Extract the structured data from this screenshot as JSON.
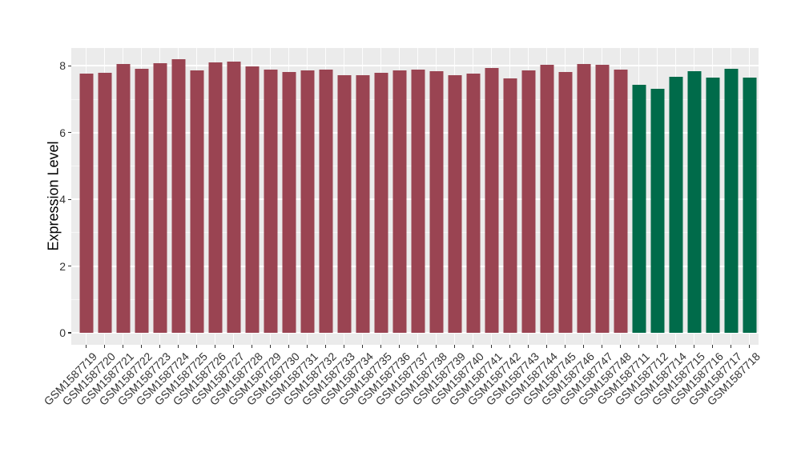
{
  "window": {
    "background": "#FFFFFF"
  },
  "chart_data": {
    "type": "bar",
    "title": "",
    "xlabel": "",
    "ylabel": "Expression Level",
    "ylim": [
      0,
      8.6
    ],
    "yticks": [
      0,
      2,
      4,
      6,
      8
    ],
    "yticks_minor": [
      1,
      3,
      5,
      7
    ],
    "grid": "on",
    "legend_position": "none",
    "panel_background": "#EBEBEB",
    "gridline_color": "#FFFFFF",
    "axis_text_color": "#333333",
    "axis_title_color": "#000000",
    "bar_color_main": "#9A4452",
    "bar_color_highlight": "#006B4A",
    "highlight_start_index": 30,
    "categories": [
      "GSM1587719",
      "GSM1587720",
      "GSM1587721",
      "GSM1587722",
      "GSM1587723",
      "GSM1587724",
      "GSM1587725",
      "GSM1587726",
      "GSM1587727",
      "GSM1587728",
      "GSM1587729",
      "GSM1587730",
      "GSM1587731",
      "GSM1587732",
      "GSM1587733",
      "GSM1587734",
      "GSM1587735",
      "GSM1587736",
      "GSM1587737",
      "GSM1587738",
      "GSM1587739",
      "GSM1587740",
      "GSM1587741",
      "GSM1587742",
      "GSM1587743",
      "GSM1587744",
      "GSM1587745",
      "GSM1587746",
      "GSM1587747",
      "GSM1587748",
      "GSM1587711",
      "GSM1587712",
      "GSM1587714",
      "GSM1587715",
      "GSM1587716",
      "GSM1587717",
      "GSM1587718"
    ],
    "values": [
      7.77,
      7.79,
      8.05,
      7.91,
      8.08,
      8.19,
      7.86,
      8.11,
      8.13,
      7.98,
      7.89,
      7.83,
      7.87,
      7.88,
      7.73,
      7.72,
      7.8,
      7.86,
      7.9,
      7.84,
      7.73,
      7.76,
      7.94,
      7.63,
      7.86,
      8.03,
      7.83,
      8.06,
      8.03,
      7.88,
      7.43,
      7.32,
      7.68,
      7.84,
      7.66,
      7.91,
      7.65
    ]
  }
}
